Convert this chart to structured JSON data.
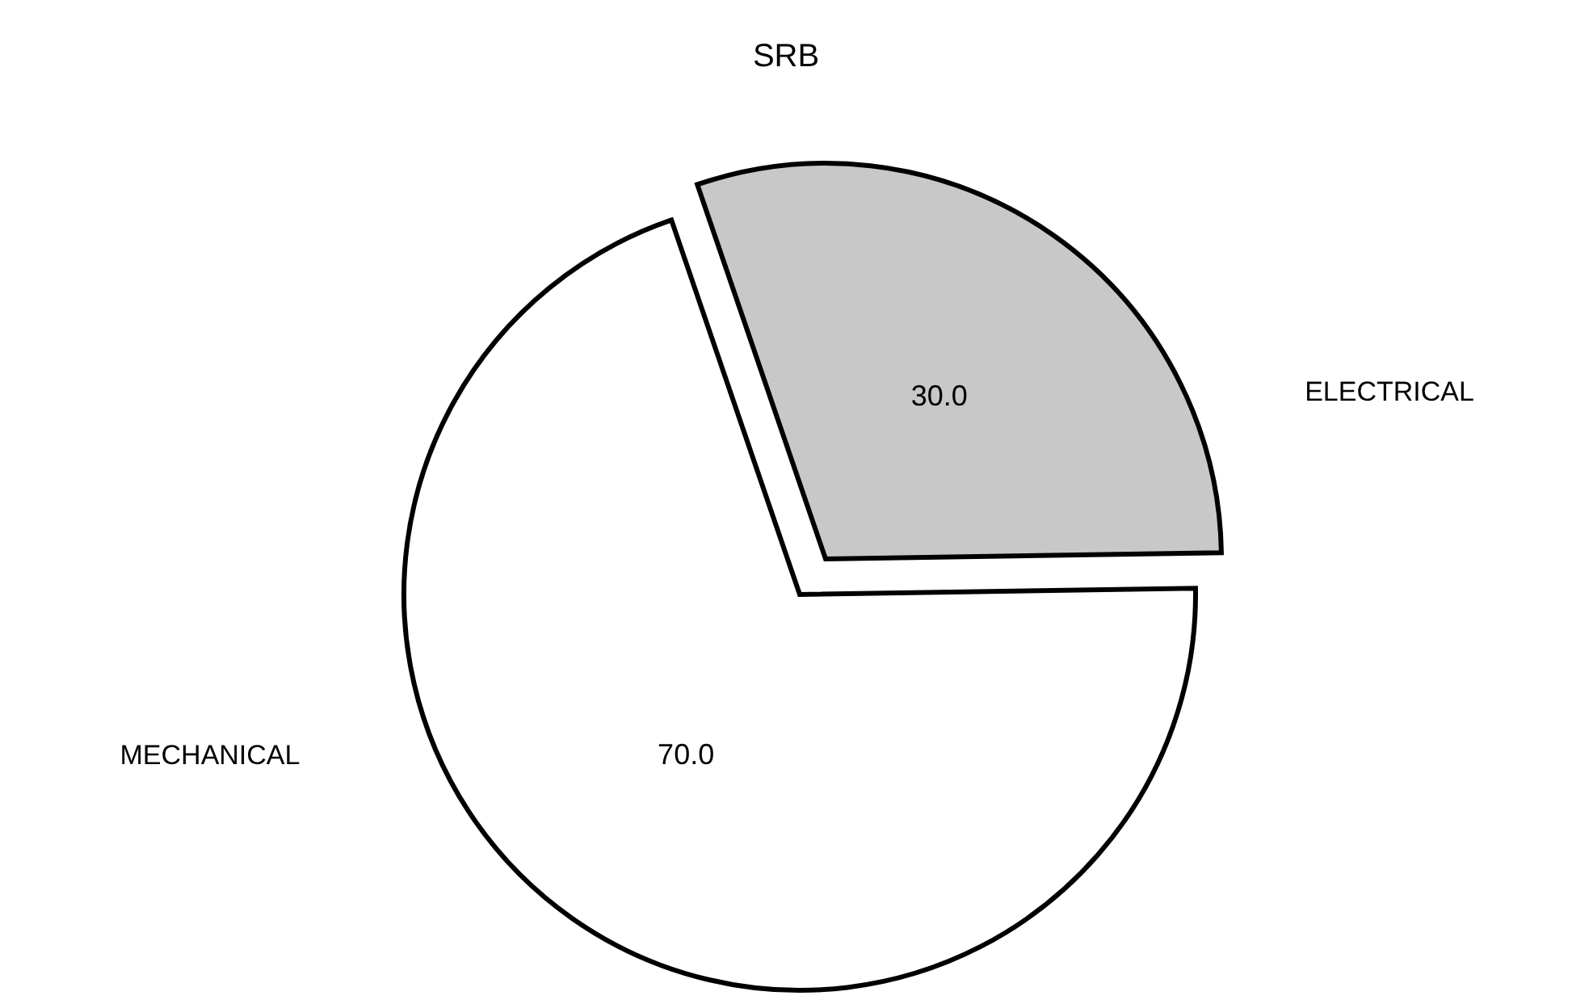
{
  "chart_data": {
    "type": "pie",
    "title": "SRB",
    "categories": [
      "ELECTRICAL",
      "MECHANICAL"
    ],
    "values": [
      30,
      70
    ],
    "colors": [
      "#c8c8c8",
      "#ffffff"
    ],
    "value_labels": [
      "30.0",
      "70.0"
    ],
    "legend": false
  }
}
